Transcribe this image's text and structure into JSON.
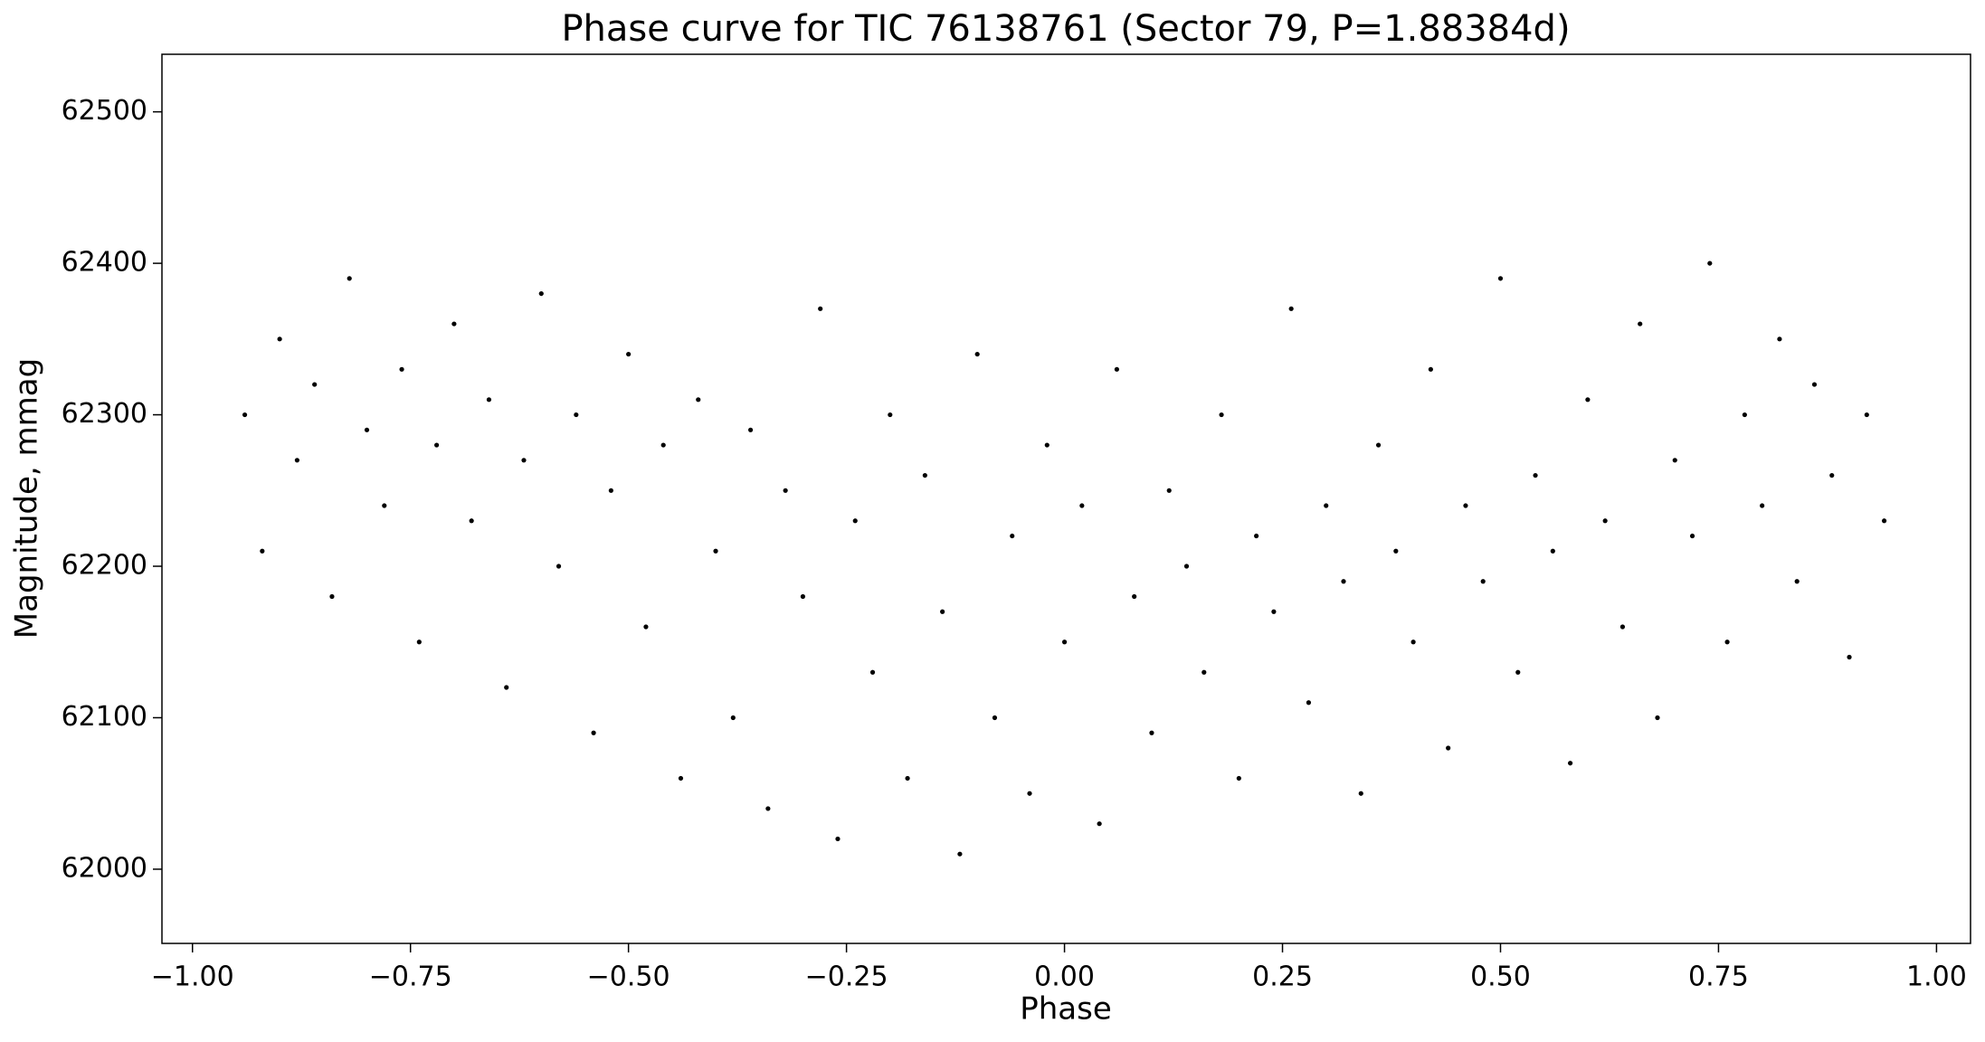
{
  "chart_data": {
    "type": "scatter",
    "title": "Phase curve for TIC 76138761 (Sector 79, P=1.88384d)",
    "xlabel": "Phase",
    "ylabel": "Magnitude, mmag",
    "color": "#000000",
    "xlim": [
      -1.035,
      1.039
    ],
    "ylim": [
      61951,
      62538
    ],
    "xticks": [
      {
        "value": -1,
        "label": "−1.00"
      },
      {
        "value": -0.75,
        "label": "−0.75"
      },
      {
        "value": -0.5,
        "label": "−0.50"
      },
      {
        "value": -0.25,
        "label": "−0.25"
      },
      {
        "value": 0,
        "label": "0.00"
      },
      {
        "value": 0.25,
        "label": "0.25"
      },
      {
        "value": 0.5,
        "label": "0.50"
      },
      {
        "value": 0.75,
        "label": "0.75"
      },
      {
        "value": 1,
        "label": "1.00"
      }
    ],
    "yticks": [
      62000,
      62100,
      62200,
      62300,
      62400,
      62500
    ],
    "x": [
      -0.94,
      -0.92,
      -0.9,
      -0.88,
      -0.86,
      -0.84,
      -0.82,
      -0.8,
      -0.78,
      -0.76,
      -0.74,
      -0.72,
      -0.7,
      -0.68,
      -0.66,
      -0.64,
      -0.62,
      -0.6,
      -0.58,
      -0.56,
      -0.54,
      -0.52,
      -0.5,
      -0.48,
      -0.46,
      -0.44,
      -0.42,
      -0.4,
      -0.38,
      -0.36,
      -0.34,
      -0.32,
      -0.3,
      -0.28,
      -0.26,
      -0.24,
      -0.22,
      -0.2,
      -0.18,
      -0.16,
      -0.14,
      -0.12,
      -0.1,
      -0.08,
      -0.06,
      -0.04,
      -0.02,
      0.0,
      0.02,
      0.04,
      0.06,
      0.08,
      0.1,
      0.12,
      0.14,
      0.16,
      0.18,
      0.2,
      0.22,
      0.24,
      0.26,
      0.28,
      0.3,
      0.32,
      0.34,
      0.36,
      0.38,
      0.4,
      0.42,
      0.44,
      0.46,
      0.48,
      0.5,
      0.52,
      0.54,
      0.56,
      0.58,
      0.6,
      0.62,
      0.64,
      0.66,
      0.68,
      0.7,
      0.72,
      0.74,
      0.76,
      0.78,
      0.8,
      0.82,
      0.84,
      0.86,
      0.88,
      0.9,
      0.92,
      0.94
    ],
    "values": [
      62300,
      62210,
      62350,
      62270,
      62320,
      62180,
      62390,
      62290,
      62240,
      62330,
      62150,
      62280,
      62360,
      62230,
      62310,
      62120,
      62270,
      62380,
      62200,
      62300,
      62090,
      62250,
      62340,
      62160,
      62280,
      62060,
      62310,
      62210,
      62100,
      62290,
      62040,
      62250,
      62180,
      62370,
      62020,
      62230,
      62130,
      62300,
      62060,
      62260,
      62170,
      62010,
      62340,
      62100,
      62220,
      62050,
      62280,
      62150,
      62240,
      62030,
      62330,
      62180,
      62090,
      62250,
      62200,
      62130,
      62300,
      62060,
      62220,
      62170,
      62370,
      62110,
      62240,
      62190,
      62050,
      62280,
      62210,
      62150,
      62330,
      62080,
      62240,
      62190,
      62390,
      62130,
      62260,
      62210,
      62070,
      62310,
      62230,
      62160,
      62360,
      62100,
      62270,
      62220,
      62400,
      62150,
      62300,
      62240,
      62350,
      62190,
      62320,
      62260,
      62140,
      62300,
      62230
    ]
  }
}
